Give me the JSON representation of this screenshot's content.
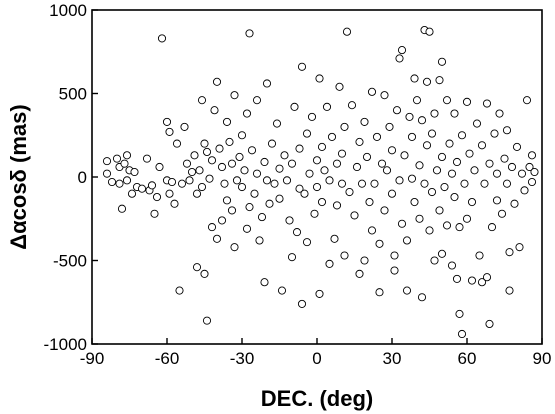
{
  "chart_data": {
    "type": "scatter",
    "title": "",
    "xlabel": "DEC. (deg)",
    "ylabel": "Δαcosδ (mas)",
    "xlim": [
      -90,
      90
    ],
    "ylim": [
      -1000,
      1000
    ],
    "x_ticks": [
      -90,
      -60,
      -30,
      0,
      30,
      60,
      90
    ],
    "y_ticks": [
      -1000,
      -500,
      0,
      500,
      1000
    ],
    "x_tick_labels": [
      "-90",
      "-60",
      "-30",
      "0",
      "30",
      "60",
      "90"
    ],
    "y_tick_labels": [
      "-1000",
      "-500",
      "0",
      "500",
      "1000"
    ],
    "grid": false,
    "legend": "none",
    "marker": "open-circle",
    "colors": {
      "marker_edge": "#000000",
      "marker_fill": "#ffffff"
    },
    "series": [
      {
        "values": [
          [
            -84,
            95
          ],
          [
            -84,
            20
          ],
          [
            -82,
            -30
          ],
          [
            -80,
            110
          ],
          [
            -79,
            60
          ],
          [
            -79,
            -40
          ],
          [
            -78,
            -190
          ],
          [
            -77,
            80
          ],
          [
            -76,
            130
          ],
          [
            -76,
            -20
          ],
          [
            -75,
            40
          ],
          [
            -74,
            -100
          ],
          [
            -73,
            30
          ],
          [
            -72,
            -60
          ],
          [
            -70,
            -70
          ],
          [
            -68,
            110
          ],
          [
            -67,
            -80
          ],
          [
            -66,
            -50
          ],
          [
            -65,
            -220
          ],
          [
            -64,
            -120
          ],
          [
            -63,
            60
          ],
          [
            -62,
            830
          ],
          [
            -60,
            330
          ],
          [
            -60,
            -20
          ],
          [
            -59,
            270
          ],
          [
            -59,
            -100
          ],
          [
            -58,
            -30
          ],
          [
            -57,
            -160
          ],
          [
            -56,
            200
          ],
          [
            -55,
            -680
          ],
          [
            -54,
            -40
          ],
          [
            -53,
            300
          ],
          [
            -52,
            80
          ],
          [
            -51,
            -20
          ],
          [
            -50,
            30
          ],
          [
            -49,
            130
          ],
          [
            -48,
            -100
          ],
          [
            -48,
            -540
          ],
          [
            -47,
            40
          ],
          [
            -46,
            460
          ],
          [
            -46,
            -60
          ],
          [
            -45,
            -580
          ],
          [
            -45,
            200
          ],
          [
            -44,
            -860
          ],
          [
            -44,
            150
          ],
          [
            -43,
            -10
          ],
          [
            -42,
            -300
          ],
          [
            -42,
            100
          ],
          [
            -41,
            400
          ],
          [
            -40,
            -370
          ],
          [
            -40,
            570
          ],
          [
            -39,
            170
          ],
          [
            -38,
            -260
          ],
          [
            -38,
            60
          ],
          [
            -37,
            -40
          ],
          [
            -36,
            330
          ],
          [
            -36,
            -140
          ],
          [
            -35,
            210
          ],
          [
            -34,
            -200
          ],
          [
            -34,
            80
          ],
          [
            -33,
            490
          ],
          [
            -33,
            -420
          ],
          [
            -32,
            -20
          ],
          [
            -31,
            120
          ],
          [
            -30,
            -60
          ],
          [
            -30,
            250
          ],
          [
            -29,
            40
          ],
          [
            -28,
            -310
          ],
          [
            -28,
            380
          ],
          [
            -27,
            860
          ],
          [
            -27,
            -180
          ],
          [
            -26,
            160
          ],
          [
            -25,
            -100
          ],
          [
            -24,
            460
          ],
          [
            -24,
            20
          ],
          [
            -23,
            -380
          ],
          [
            -22,
            -240
          ],
          [
            -21,
            -630
          ],
          [
            -21,
            90
          ],
          [
            -20,
            560
          ],
          [
            -20,
            -20
          ],
          [
            -19,
            -160
          ],
          [
            -18,
            200
          ],
          [
            -17,
            -40
          ],
          [
            -16,
            320
          ],
          [
            -15,
            -130
          ],
          [
            -15,
            50
          ],
          [
            -14,
            -680
          ],
          [
            -13,
            130
          ],
          [
            -12,
            -20
          ],
          [
            -11,
            -260
          ],
          [
            -10,
            -480
          ],
          [
            -10,
            80
          ],
          [
            -9,
            420
          ],
          [
            -8,
            -330
          ],
          [
            -7,
            -70
          ],
          [
            -7,
            170
          ],
          [
            -6,
            -760
          ],
          [
            -6,
            660
          ],
          [
            -5,
            -100
          ],
          [
            -4,
            260
          ],
          [
            -4,
            -390
          ],
          [
            -3,
            20
          ],
          [
            -2,
            360
          ],
          [
            -1,
            -220
          ],
          [
            0,
            100
          ],
          [
            0,
            -60
          ],
          [
            1,
            590
          ],
          [
            1,
            -700
          ],
          [
            2,
            180
          ],
          [
            2,
            -150
          ],
          [
            3,
            40
          ],
          [
            4,
            420
          ],
          [
            5,
            -520
          ],
          [
            5,
            -20
          ],
          [
            6,
            240
          ],
          [
            7,
            -370
          ],
          [
            8,
            80
          ],
          [
            8,
            -170
          ],
          [
            9,
            540
          ],
          [
            10,
            -40
          ],
          [
            10,
            140
          ],
          [
            11,
            -470
          ],
          [
            11,
            300
          ],
          [
            12,
            870
          ],
          [
            13,
            -90
          ],
          [
            14,
            430
          ],
          [
            15,
            -230
          ],
          [
            16,
            60
          ],
          [
            17,
            210
          ],
          [
            17,
            -580
          ],
          [
            18,
            -40
          ],
          [
            19,
            330
          ],
          [
            19,
            -500
          ],
          [
            20,
            120
          ],
          [
            21,
            -150
          ],
          [
            22,
            510
          ],
          [
            22,
            -320
          ],
          [
            23,
            -40
          ],
          [
            24,
            240
          ],
          [
            25,
            -400
          ],
          [
            25,
            -690
          ],
          [
            26,
            80
          ],
          [
            27,
            490
          ],
          [
            27,
            -200
          ],
          [
            28,
            40
          ],
          [
            29,
            300
          ],
          [
            30,
            -100
          ],
          [
            30,
            160
          ],
          [
            31,
            -470
          ],
          [
            31,
            -560
          ],
          [
            32,
            400
          ],
          [
            33,
            710
          ],
          [
            33,
            -20
          ],
          [
            34,
            760
          ],
          [
            34,
            -280
          ],
          [
            35,
            130
          ],
          [
            36,
            -380
          ],
          [
            36,
            -680
          ],
          [
            37,
            360
          ],
          [
            38,
            -10
          ],
          [
            38,
            240
          ],
          [
            39,
            590
          ],
          [
            39,
            -150
          ],
          [
            40,
            460
          ],
          [
            41,
            70
          ],
          [
            41,
            -250
          ],
          [
            42,
            -720
          ],
          [
            42,
            340
          ],
          [
            43,
            880
          ],
          [
            43,
            -40
          ],
          [
            44,
            570
          ],
          [
            44,
            190
          ],
          [
            45,
            870
          ],
          [
            45,
            -320
          ],
          [
            46,
            -90
          ],
          [
            46,
            260
          ],
          [
            47,
            380
          ],
          [
            47,
            -500
          ],
          [
            48,
            40
          ],
          [
            49,
            580
          ],
          [
            49,
            -200
          ],
          [
            50,
            -460
          ],
          [
            50,
            690
          ],
          [
            50,
            120
          ],
          [
            51,
            -60
          ],
          [
            52,
            460
          ],
          [
            52,
            -290
          ],
          [
            53,
            200
          ],
          [
            54,
            -530
          ],
          [
            54,
            20
          ],
          [
            55,
            -120
          ],
          [
            55,
            380
          ],
          [
            56,
            -610
          ],
          [
            56,
            90
          ],
          [
            57,
            -820
          ],
          [
            57,
            -300
          ],
          [
            58,
            250
          ],
          [
            58,
            -940
          ],
          [
            59,
            -40
          ],
          [
            60,
            -250
          ],
          [
            60,
            450
          ],
          [
            61,
            140
          ],
          [
            62,
            -150
          ],
          [
            62,
            -620
          ],
          [
            63,
            40
          ],
          [
            64,
            320
          ],
          [
            65,
            -470
          ],
          [
            66,
            -630
          ],
          [
            66,
            190
          ],
          [
            67,
            -40
          ],
          [
            68,
            -600
          ],
          [
            68,
            440
          ],
          [
            69,
            -880
          ],
          [
            69,
            80
          ],
          [
            70,
            -300
          ],
          [
            71,
            260
          ],
          [
            72,
            -140
          ],
          [
            72,
            20
          ],
          [
            73,
            380
          ],
          [
            74,
            -220
          ],
          [
            75,
            110
          ],
          [
            76,
            -40
          ],
          [
            76,
            280
          ],
          [
            77,
            -450
          ],
          [
            77,
            -680
          ],
          [
            78,
            60
          ],
          [
            79,
            -160
          ],
          [
            80,
            180
          ],
          [
            81,
            -420
          ],
          [
            82,
            20
          ],
          [
            83,
            -80
          ],
          [
            84,
            460
          ],
          [
            85,
            60
          ],
          [
            86,
            130
          ],
          [
            86,
            -30
          ],
          [
            87,
            30
          ]
        ]
      }
    ]
  }
}
